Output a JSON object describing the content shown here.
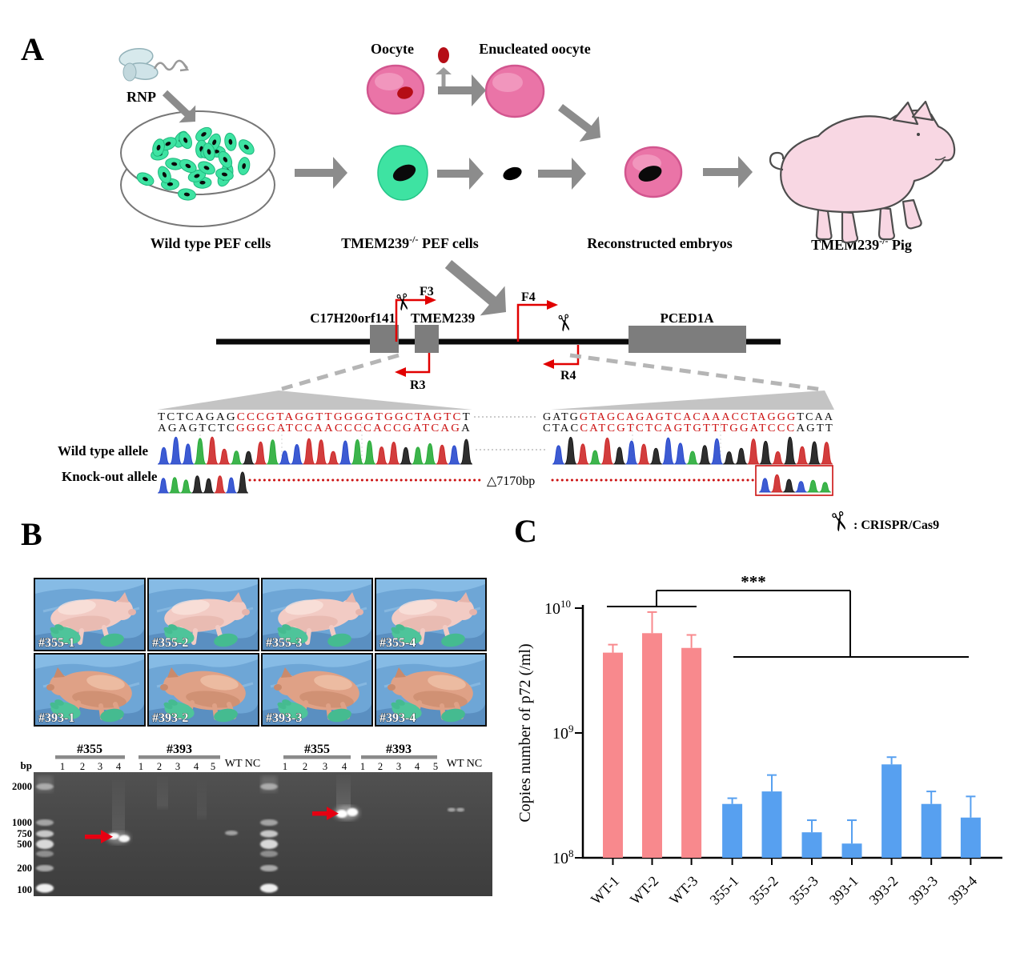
{
  "panelA": {
    "label": "A",
    "rnp_label": "RNP",
    "labels": {
      "wild_type_cells": "Wild type PEF cells",
      "oocyte": "Oocyte",
      "enucleated_oocyte": "Enucleated oocyte",
      "ko_pre": "TMEM239",
      "ko_sup": "-/-",
      "ko_post": " PEF cells",
      "reconstructed": "Reconstructed embryos",
      "pig_pre": "TMEM239",
      "pig_sup": "-/-",
      "pig_post": " Pig"
    },
    "gene_map": {
      "gene_left": "C17H20orf141",
      "gene_mid": "TMEM239",
      "gene_right": "PCED1A",
      "f3": "F3",
      "r3": "R3",
      "f4": "F4",
      "r4": "R4"
    },
    "sequences": {
      "left_top": {
        "black1": "TCTCAGAG",
        "red": "CCCGTAGGTTGGGGTGGCTAGTC",
        "black2": "T"
      },
      "left_bottom": {
        "black1": "AGAGTCTC",
        "red": "GGGCATCCAACCCCACCGATCAG",
        "black2": "A"
      },
      "right_top": {
        "black1": "GATG",
        "red": "GTAGCAGAGTCACAAACCTAGGG",
        "black2": "TCAA"
      },
      "right_bottom": {
        "black1": "CTAC",
        "red": "CATCGTCTCAGTGTTTGGATCCC",
        "black2": "AGTT"
      }
    },
    "alleles": {
      "wild_type": "Wild type allele",
      "knockout": "Knock-out allele",
      "deletion": "△7170bp"
    },
    "crispr_legend": ": CRISPR/Cas9"
  },
  "panelB": {
    "label": "B",
    "photos": [
      "#355-1",
      "#355-2",
      "#355-3",
      "#355-4",
      "#393-1",
      "#393-2",
      "#393-3",
      "#393-4"
    ],
    "gel": {
      "bp": "bp",
      "ladder": [
        "2000",
        "1000",
        "750",
        "500",
        "200",
        "100"
      ],
      "sets": [
        {
          "groups": [
            {
              "name": "#355",
              "lanes": [
                "1",
                "2",
                "3",
                "4"
              ]
            },
            {
              "name": "#393",
              "lanes": [
                "1",
                "2",
                "3",
                "4",
                "5"
              ]
            }
          ],
          "control": "WT NC"
        },
        {
          "groups": [
            {
              "name": "#355",
              "lanes": [
                "1",
                "2",
                "3",
                "4"
              ]
            },
            {
              "name": "#393",
              "lanes": [
                "1",
                "2",
                "3",
                "4",
                "5"
              ]
            }
          ],
          "control": "WT NC"
        }
      ]
    }
  },
  "panelC": {
    "label": "C",
    "significance": "***"
  },
  "chart_data": {
    "type": "bar",
    "title": "",
    "ylabel": "Copies number of p72 (/ml)",
    "xlabel": "",
    "yscale": "log",
    "ylim": [
      100000000.0,
      10000000000.0
    ],
    "yticks": [
      {
        "mantissa": "10",
        "exponent": "8"
      },
      {
        "mantissa": "10",
        "exponent": "9"
      },
      {
        "mantissa": "10",
        "exponent": "10"
      }
    ],
    "grid": false,
    "legend_position": "none",
    "categories": [
      "WT-1",
      "WT-2",
      "WT-3",
      "355-1",
      "355-2",
      "355-3",
      "393-1",
      "393-2",
      "393-3",
      "393-4"
    ],
    "values": [
      4400000000.0,
      6300000000.0,
      4800000000.0,
      270000000.0,
      340000000.0,
      160000000.0,
      130000000.0,
      560000000.0,
      270000000.0,
      210000000.0
    ],
    "errors_upper": [
      5100000000.0,
      9300000000.0,
      6100000000.0,
      300000000.0,
      460000000.0,
      200000000.0,
      200000000.0,
      640000000.0,
      340000000.0,
      310000000.0
    ],
    "bar_colors": [
      "#F8898D",
      "#F8898D",
      "#F8898D",
      "#57A0F0",
      "#57A0F0",
      "#57A0F0",
      "#57A0F0",
      "#57A0F0",
      "#57A0F0",
      "#57A0F0"
    ],
    "significance_label": "***"
  },
  "colors": {
    "accent_red": "#E60012",
    "primer_red": "#E10000",
    "wt_bar": "#F8898D",
    "ko_bar": "#57A0F0",
    "cell_green": "#3EE3A2",
    "oocyte_pink": "#EA74A7"
  }
}
